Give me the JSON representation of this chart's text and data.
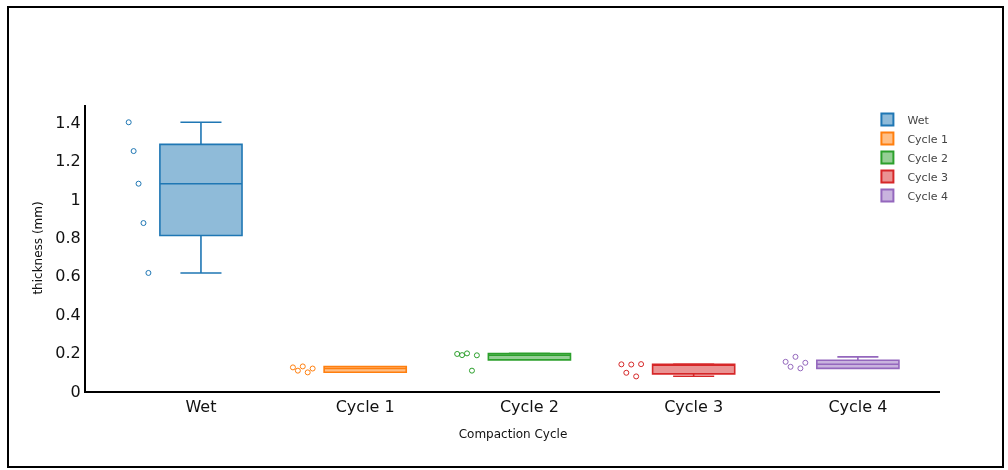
{
  "chart_data": {
    "type": "box",
    "categories": [
      "Wet",
      "Cycle 1",
      "Cycle 2",
      "Cycle 3",
      "Cycle 4"
    ],
    "xlabel": "Compaction Cycle",
    "ylabel": "thickness (mm)",
    "ylim": [
      0,
      1.49
    ],
    "yticks": [
      0,
      0.2,
      0.4,
      0.6,
      0.8,
      1,
      1.2,
      1.4
    ],
    "series": [
      {
        "type": "box",
        "name": "Wet",
        "color": "#1f77b4",
        "boxes": [
          {
            "low": 0.615,
            "q1": 0.81,
            "median": 1.08,
            "q3": 1.285,
            "high": 1.4
          },
          null,
          null,
          null,
          null
        ]
      },
      {
        "type": "box",
        "name": "Cycle 1",
        "color": "#ff7f0e",
        "boxes": [
          null,
          {
            "low": 0.098,
            "q1": 0.098,
            "median": 0.117,
            "q3": 0.128,
            "high": 0.128
          },
          null,
          null,
          null
        ]
      },
      {
        "type": "box",
        "name": "Cycle 2",
        "color": "#2ca02c",
        "boxes": [
          null,
          null,
          {
            "low": 0.162,
            "q1": 0.162,
            "median": 0.186,
            "q3": 0.195,
            "high": 0.197
          },
          null,
          null
        ]
      },
      {
        "type": "box",
        "name": "Cycle 3",
        "color": "#d62728",
        "boxes": [
          null,
          null,
          null,
          {
            "low": 0.077,
            "q1": 0.089,
            "median": 0.139,
            "q3": 0.139,
            "high": 0.14
          },
          null
        ]
      },
      {
        "type": "box",
        "name": "Cycle 4",
        "color": "#9467bd",
        "boxes": [
          null,
          null,
          null,
          null,
          {
            "low": 0.118,
            "q1": 0.118,
            "median": 0.139,
            "q3": 0.16,
            "high": 0.178
          }
        ]
      },
      {
        "type": "scatter",
        "color": "#1f77b4",
        "x": [
          "Wet",
          "Wet",
          "Wet",
          "Wet",
          "Wet"
        ],
        "values": [
          1.4,
          1.25,
          1.08,
          0.875,
          0.615
        ]
      },
      {
        "type": "scatter",
        "color": "#ff7f0e",
        "x": [
          "Cycle 1",
          "Cycle 1",
          "Cycle 1",
          "Cycle 1",
          "Cycle 1"
        ],
        "values": [
          0.123,
          0.106,
          0.128,
          0.097,
          0.117
        ]
      },
      {
        "type": "scatter",
        "color": "#2ca02c",
        "x": [
          "Cycle 2",
          "Cycle 2",
          "Cycle 2",
          "Cycle 2",
          "Cycle 2"
        ],
        "values": [
          0.193,
          0.187,
          0.196,
          0.106,
          0.186
        ]
      },
      {
        "type": "scatter",
        "color": "#d62728",
        "x": [
          "Cycle 3",
          "Cycle 3",
          "Cycle 3",
          "Cycle 3",
          "Cycle 3"
        ],
        "values": [
          0.139,
          0.095,
          0.138,
          0.076,
          0.14
        ]
      },
      {
        "type": "scatter",
        "color": "#9467bd",
        "x": [
          "Cycle 4",
          "Cycle 4",
          "Cycle 4",
          "Cycle 4",
          "Cycle 4"
        ],
        "values": [
          0.152,
          0.126,
          0.178,
          0.118,
          0.147
        ]
      }
    ],
    "marker": "circle",
    "legend": "top right"
  }
}
